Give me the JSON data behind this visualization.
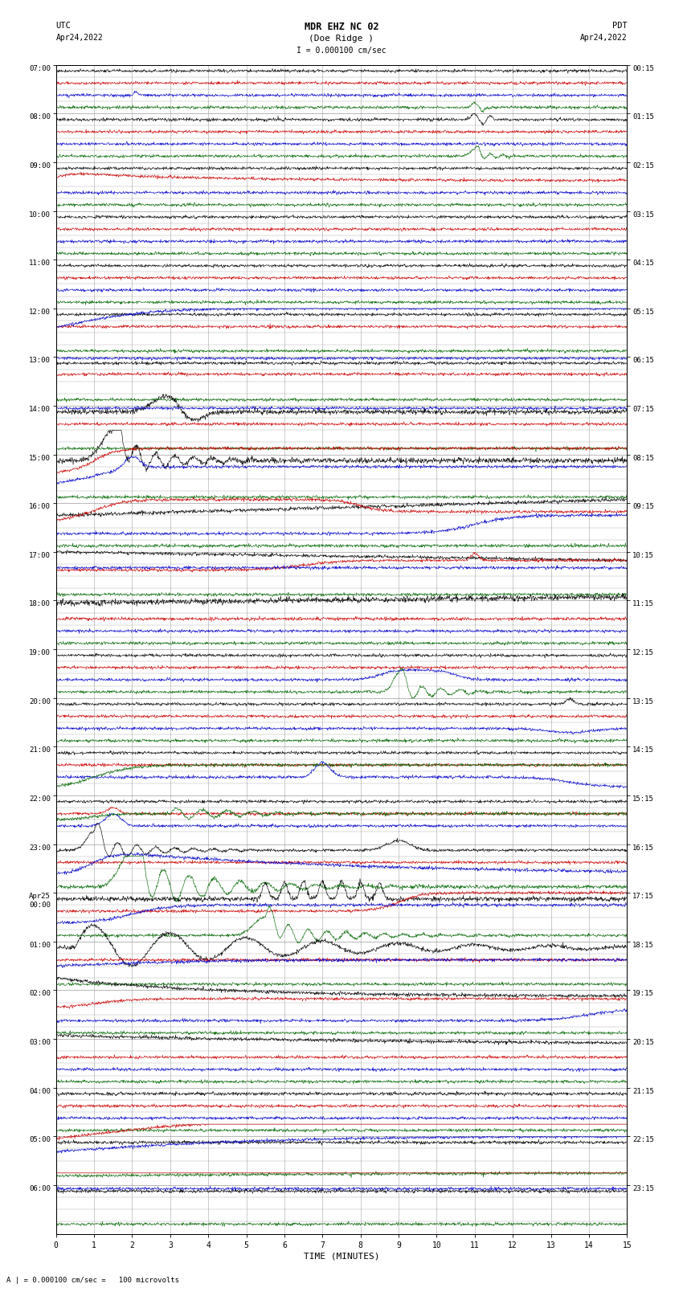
{
  "title_line1": "MDR EHZ NC 02",
  "title_line2": "(Doe Ridge )",
  "scale_label": "I = 0.000100 cm/sec",
  "left_header_1": "UTC",
  "left_header_2": "Apr24,2022",
  "right_header_1": "PDT",
  "right_header_2": "Apr24,2022",
  "bottom_label": "TIME (MINUTES)",
  "bottom_note": "A | = 0.000100 cm/sec =   100 microvolts",
  "utc_labels": [
    "07:00",
    "08:00",
    "09:00",
    "10:00",
    "11:00",
    "12:00",
    "13:00",
    "14:00",
    "15:00",
    "16:00",
    "17:00",
    "18:00",
    "19:00",
    "20:00",
    "21:00",
    "22:00",
    "23:00",
    "Apr25\n00:00",
    "01:00",
    "02:00",
    "03:00",
    "04:00",
    "05:00",
    "06:00"
  ],
  "pdt_labels": [
    "00:15",
    "01:15",
    "02:15",
    "03:15",
    "04:15",
    "05:15",
    "06:15",
    "07:15",
    "08:15",
    "09:15",
    "10:15",
    "11:15",
    "12:15",
    "13:15",
    "14:15",
    "15:15",
    "16:15",
    "17:15",
    "18:15",
    "19:15",
    "20:15",
    "21:15",
    "22:15",
    "23:15"
  ],
  "n_hours": 24,
  "n_traces_per_hour": 4,
  "n_minutes": 15,
  "bg_color": "#ffffff",
  "grid_color": "#888888",
  "colors": [
    "#000000",
    "#cc0000",
    "#0000cc",
    "#006600"
  ],
  "fig_width": 8.5,
  "fig_height": 16.13
}
